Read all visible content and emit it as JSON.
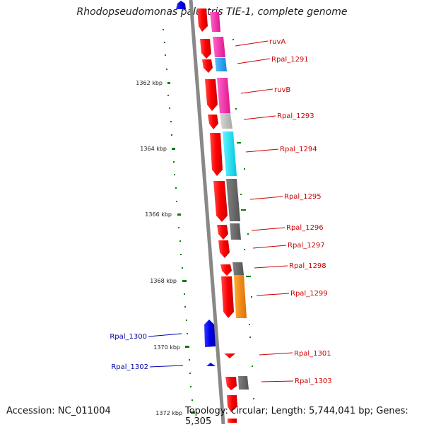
{
  "title": "Rhodopseudomonas palustris TIE-1, complete genome",
  "accession_text": "Accession: NC_011004",
  "stats_text": "Topology: circular; Length: 5,744,041 bp; Genes: 5,305",
  "scale_labels": [
    "1362 kbp",
    "1364 kbp",
    "1366 kbp",
    "1368 kbp",
    "1370 kbp",
    "1372 kbp"
  ],
  "gene_labels_right": [
    "ruvA",
    "Rpal_1291",
    "ruvB",
    "Rpal_1293",
    "Rpal_1294",
    "Rpal_1295",
    "Rpal_1296",
    "Rpal_1297",
    "Rpal_1298",
    "Rpal_1299",
    "Rpal_1301",
    "Rpal_1303"
  ],
  "gene_labels_left": [
    "Rpal_1300",
    "Rpal_1302"
  ],
  "colors": {
    "forward_gene": "#ff0000",
    "reverse_gene": "#0000ee",
    "backbone": "#888888",
    "scale_tick": "#008000",
    "label_forward": "#cc0000",
    "label_reverse": "#0000aa",
    "cog_magenta": "#ff33bb",
    "cog_cyan": "#00e5ff",
    "cog_sky": "#22aaff",
    "cog_lightgray": "#c0c0c0",
    "cog_darkgray": "#666666",
    "cog_orange": "#ff8800"
  }
}
